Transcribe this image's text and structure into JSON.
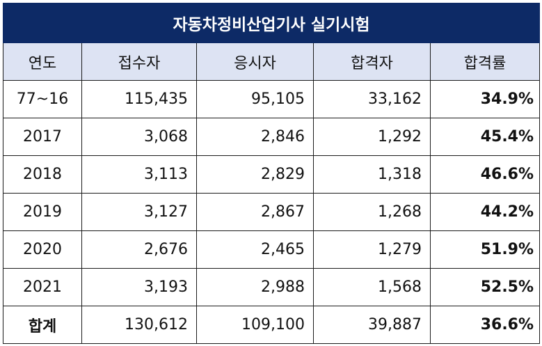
{
  "title": "자동차정비산업기사 실기시험",
  "headers": {
    "year": "연도",
    "applicants": "접수자",
    "examinees": "응시자",
    "passers": "합격자",
    "pass_rate": "합격률"
  },
  "rows": [
    {
      "year": "77~16",
      "applicants": "115,435",
      "examinees": "95,105",
      "passers": "33,162",
      "pass_rate": "34.9%"
    },
    {
      "year": "2017",
      "applicants": "3,068",
      "examinees": "2,846",
      "passers": "1,292",
      "pass_rate": "45.4%"
    },
    {
      "year": "2018",
      "applicants": "3,113",
      "examinees": "2,829",
      "passers": "1,318",
      "pass_rate": "46.6%"
    },
    {
      "year": "2019",
      "applicants": "3,127",
      "examinees": "2,867",
      "passers": "1,268",
      "pass_rate": "44.2%"
    },
    {
      "year": "2020",
      "applicants": "2,676",
      "examinees": "2,465",
      "passers": "1,279",
      "pass_rate": "51.9%"
    },
    {
      "year": "2021",
      "applicants": "3,193",
      "examinees": "2,988",
      "passers": "1,568",
      "pass_rate": "52.5%"
    }
  ],
  "total": {
    "label": "합계",
    "applicants": "130,612",
    "examinees": "109,100",
    "passers": "39,887",
    "pass_rate": "36.6%"
  },
  "colors": {
    "title_bg": "#0d2a66",
    "header_bg": "#dde3f3"
  }
}
